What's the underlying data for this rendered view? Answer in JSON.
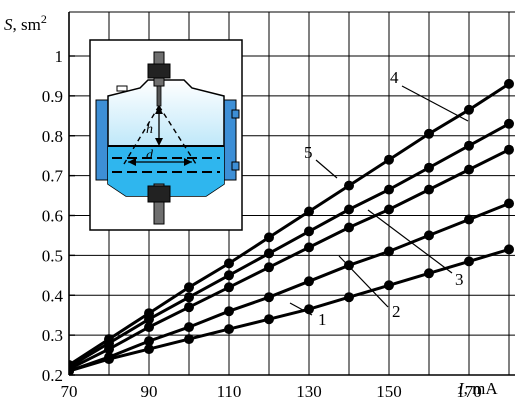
{
  "chart_data": {
    "type": "line",
    "xlabel_var": "I",
    "xlabel_unit": ", mA",
    "ylabel_var": "S",
    "ylabel_unit": ", sm",
    "ylabel_sup": "2",
    "xlim": [
      70,
      180
    ],
    "ylim": [
      0.2,
      1.05
    ],
    "grid": true,
    "x_ticks": [
      "70",
      "90",
      "110",
      "130",
      "150",
      "170"
    ],
    "y_ticks": [
      "0.2",
      "0.3",
      "0.4",
      "0.5",
      "0.6",
      "0.7",
      "0.8",
      "0.9",
      "1"
    ],
    "x_tick_values": [
      70,
      90,
      110,
      130,
      150,
      170
    ],
    "y_tick_values": [
      0.2,
      0.3,
      0.4,
      0.5,
      0.6,
      0.7,
      0.8,
      0.9,
      1.0
    ],
    "x": [
      70,
      80,
      90,
      100,
      110,
      120,
      130,
      140,
      150,
      160,
      170,
      180
    ],
    "series": [
      {
        "label": "1",
        "values": [
          0.21,
          0.24,
          0.265,
          0.29,
          0.315,
          0.34,
          0.365,
          0.395,
          0.425,
          0.455,
          0.485,
          0.515
        ]
      },
      {
        "label": "2",
        "values": [
          0.21,
          0.245,
          0.285,
          0.32,
          0.36,
          0.395,
          0.435,
          0.475,
          0.51,
          0.55,
          0.59,
          0.63
        ]
      },
      {
        "label": "3",
        "values": [
          0.215,
          0.265,
          0.32,
          0.37,
          0.42,
          0.47,
          0.52,
          0.57,
          0.615,
          0.665,
          0.715,
          0.765
        ]
      },
      {
        "label": "4",
        "values": [
          0.22,
          0.28,
          0.34,
          0.395,
          0.45,
          0.505,
          0.56,
          0.615,
          0.665,
          0.72,
          0.775,
          0.83
        ]
      },
      {
        "label": "5",
        "values": [
          0.225,
          0.29,
          0.355,
          0.42,
          0.48,
          0.545,
          0.61,
          0.675,
          0.74,
          0.805,
          0.865,
          0.93
        ]
      }
    ],
    "inset_labels": {
      "h": "h",
      "d": "d"
    }
  }
}
